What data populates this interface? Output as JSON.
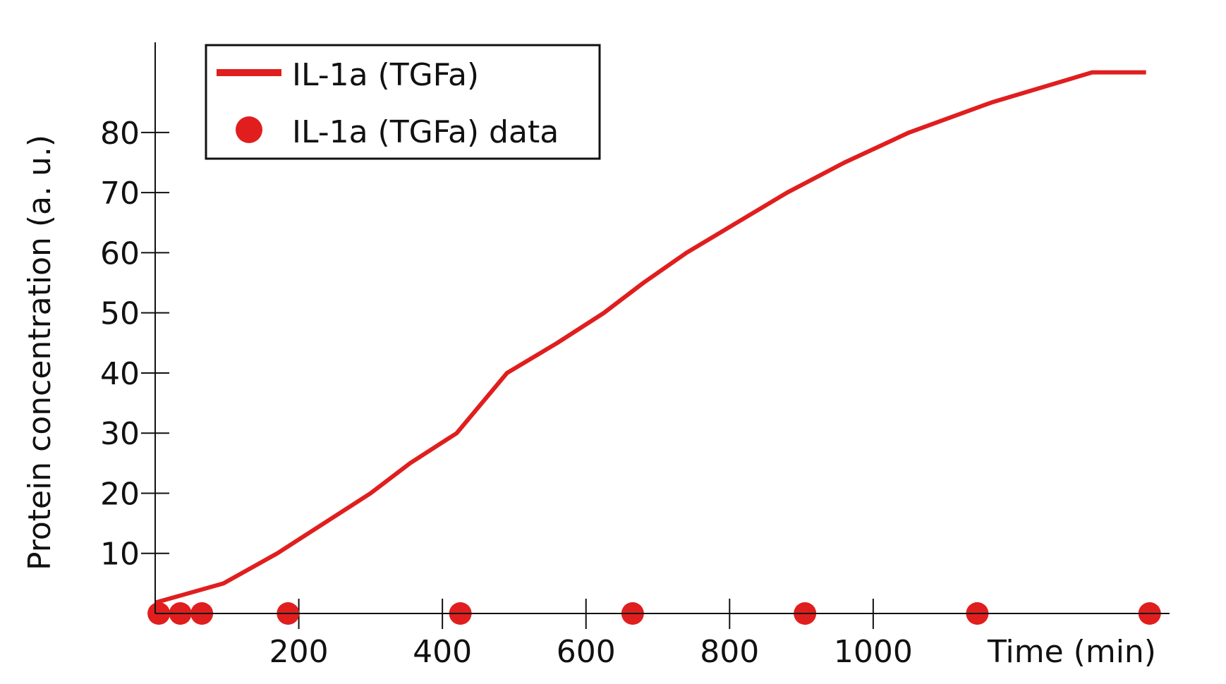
{
  "chart_data": {
    "type": "line",
    "title": "",
    "xlabel": "Time (min)",
    "ylabel": "Protein concentration (a. u.)",
    "xlim": [
      0,
      1400
    ],
    "ylim": [
      0,
      95
    ],
    "x_ticks": [
      200,
      400,
      600,
      800,
      1000
    ],
    "y_ticks": [
      10,
      20,
      30,
      40,
      50,
      60,
      70,
      80
    ],
    "x_tick_labels": [
      "200",
      "400",
      "600",
      "800",
      "1000"
    ],
    "y_tick_labels": [
      "10",
      "20",
      "30",
      "40",
      "50",
      "60",
      "70",
      "80"
    ],
    "grid": false,
    "legend_position": "top-left",
    "legend": {
      "line_label": "IL-1a (TGFa)",
      "data_label": "IL-1a (TGFa) data"
    },
    "series": [
      {
        "name": "IL-1a (TGFa)",
        "kind": "line",
        "color": "#e01e1e",
        "x": [
          0,
          95,
          170,
          235,
          300,
          355,
          420,
          490,
          560,
          625,
          680,
          740,
          810,
          880,
          960,
          1050,
          1165,
          1305,
          1380
        ],
        "y": [
          1.8,
          5,
          10,
          15,
          20,
          25,
          30,
          40,
          45,
          50,
          55,
          60,
          65,
          70,
          75,
          80,
          85,
          90,
          90
        ]
      },
      {
        "name": "IL-1a (TGFa) data",
        "kind": "scatter",
        "color": "#e01e1e",
        "x": [
          5,
          35,
          65,
          185,
          425,
          665,
          905,
          1145,
          1385
        ],
        "y": [
          0,
          0,
          0,
          0,
          0,
          0,
          0,
          0,
          0
        ]
      }
    ]
  }
}
